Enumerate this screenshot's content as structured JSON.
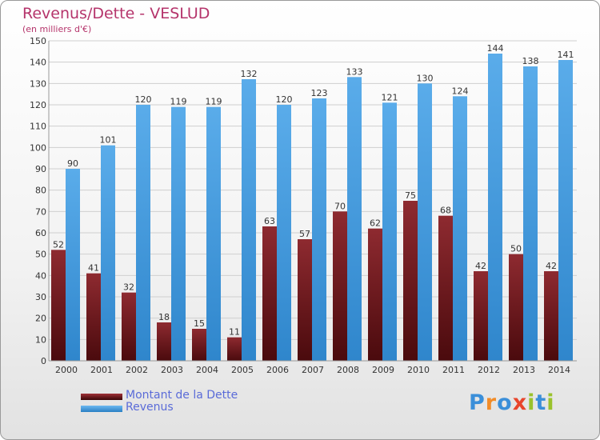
{
  "chart_data": {
    "type": "bar",
    "title": "Revenus/Dette - VESLUD",
    "subtitle": "(en milliers d'€)",
    "categories": [
      "2000",
      "2001",
      "2002",
      "2003",
      "2004",
      "2005",
      "2006",
      "2007",
      "2008",
      "2009",
      "2010",
      "2011",
      "2012",
      "2013",
      "2014"
    ],
    "series": [
      {
        "name": "Montant de la Dette",
        "color": "#7a1a1e",
        "values": [
          52,
          41,
          32,
          18,
          15,
          11,
          63,
          57,
          70,
          62,
          75,
          68,
          42,
          50,
          42
        ]
      },
      {
        "name": "Revenus",
        "color": "#3f9be0",
        "values": [
          90,
          101,
          120,
          119,
          119,
          132,
          120,
          123,
          133,
          121,
          130,
          124,
          144,
          138,
          141
        ]
      }
    ],
    "ylim": [
      0,
      150
    ],
    "yticks": [
      0,
      10,
      20,
      30,
      40,
      50,
      60,
      70,
      80,
      90,
      100,
      110,
      120,
      130,
      140,
      150
    ],
    "grid": true,
    "legend_position": "bottom-left"
  },
  "logo": {
    "text": "Proxiti",
    "letter_colors": [
      "#3b8fd9",
      "#f28c28",
      "#3b8fd9",
      "#e8452c",
      "#9ac22c",
      "#3b8fd9",
      "#9ac22c"
    ]
  }
}
